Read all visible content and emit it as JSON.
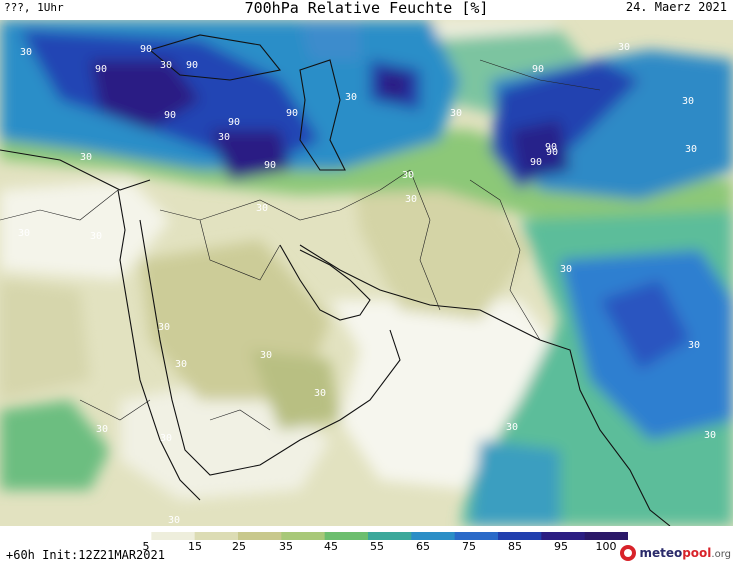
{
  "header": {
    "left": "???, 1Uhr",
    "title": "700hPa Relative Feuchte [%]",
    "date": "24. Maerz 2021"
  },
  "footer": {
    "forecast": "+60h Init:12Z21MAR2021"
  },
  "colorbar": {
    "ticks": [
      "5",
      "15",
      "25",
      "35",
      "45",
      "55",
      "65",
      "75",
      "85",
      "95",
      "100"
    ],
    "colors": [
      "#ffffff",
      "#eeeedc",
      "#dcdcb4",
      "#c8c88c",
      "#a8c878",
      "#6cbe6e",
      "#3ca89a",
      "#2b8ec6",
      "#2a6ac8",
      "#213fae",
      "#2b1e82",
      "#2a1868"
    ]
  },
  "map_labels": [
    "30",
    "90",
    "30",
    "90",
    "90",
    "90",
    "90",
    "30",
    "90",
    "90",
    "90",
    "30",
    "30",
    "30",
    "30",
    "90",
    "90",
    "90",
    "30",
    "30",
    "30",
    "30",
    "30",
    "30",
    "30",
    "30",
    "30",
    "30",
    "30",
    "30",
    "30",
    "30",
    "30",
    "30",
    "30",
    "30"
  ],
  "logo": {
    "pre": "meteo",
    "mid": "pool",
    "post": ".org"
  }
}
